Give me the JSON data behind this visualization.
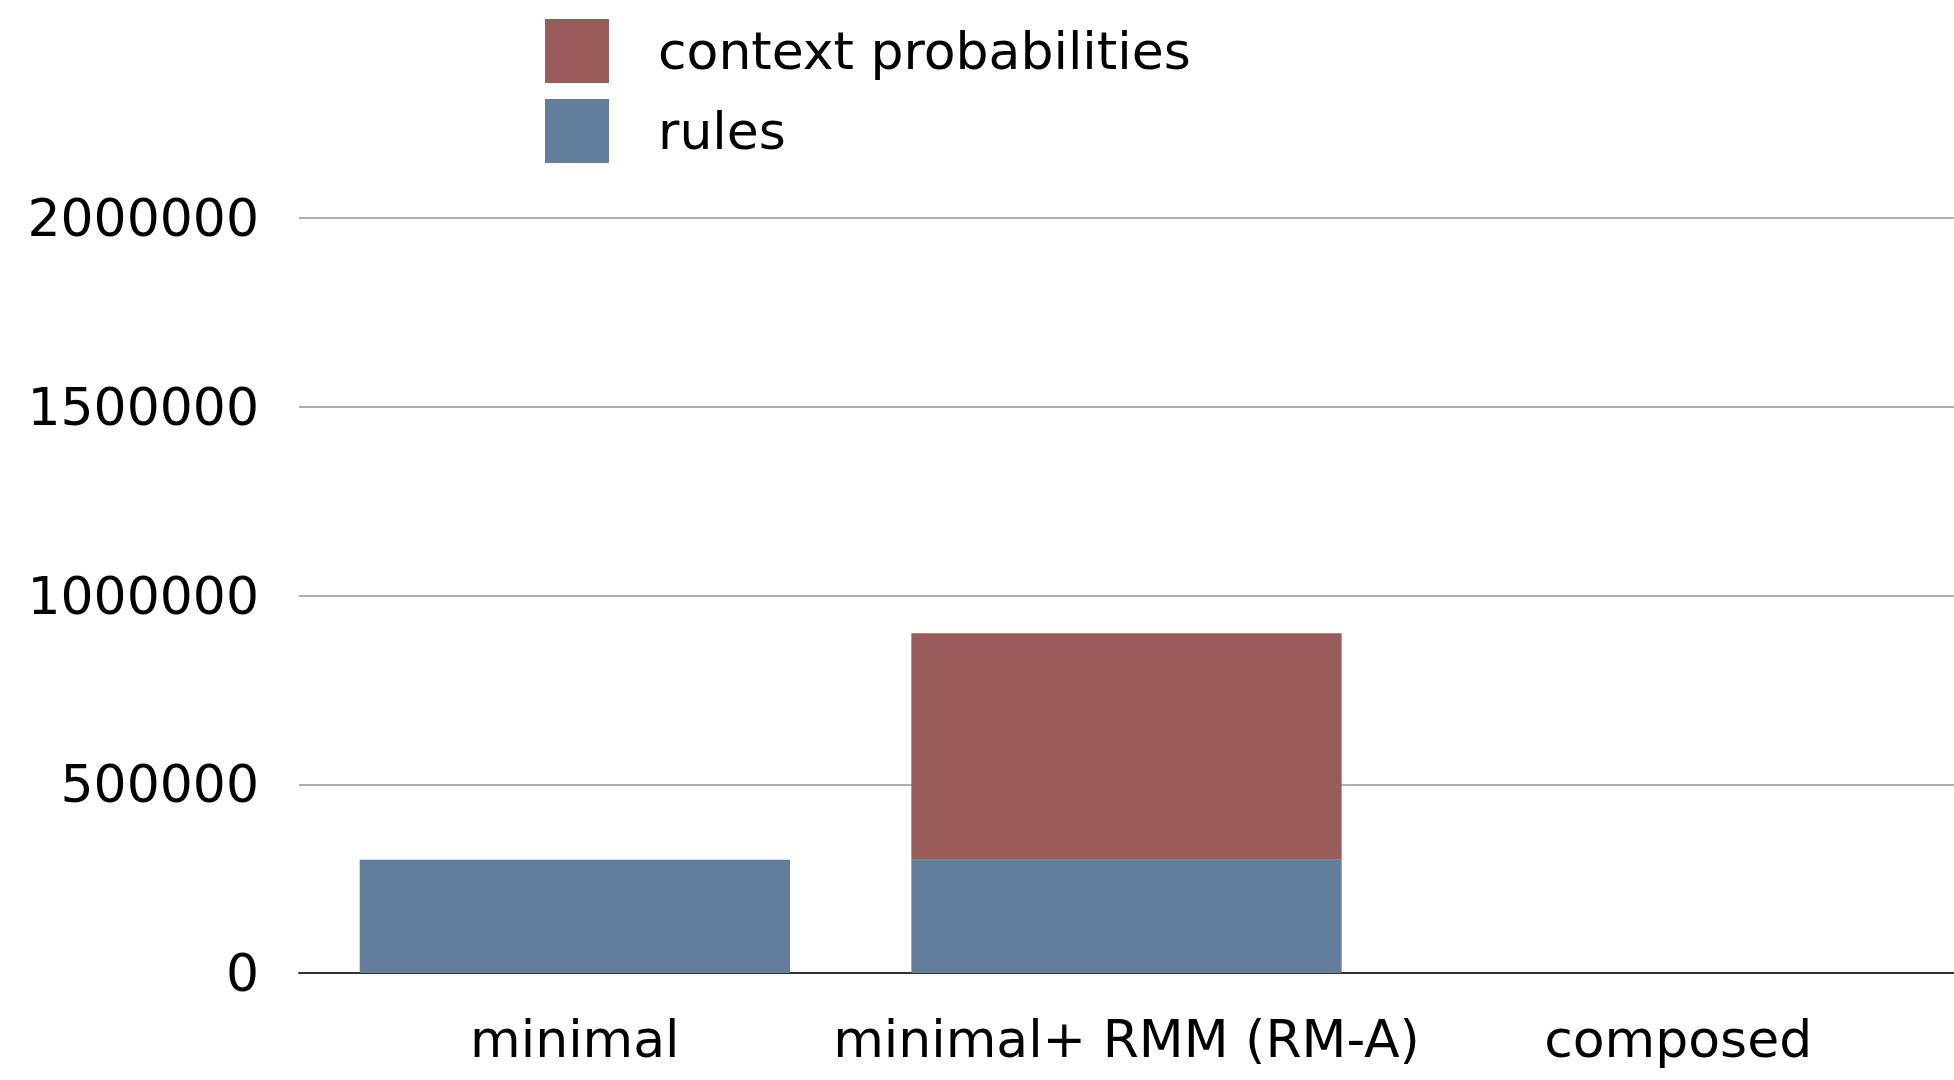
{
  "chart_data": {
    "type": "bar",
    "stacked": true,
    "categories": [
      "minimal",
      "minimal+ RMM (RM-A)",
      "composed"
    ],
    "series": [
      {
        "name": "rules",
        "color": "#637d9c",
        "values": [
          300000,
          300000,
          null
        ]
      },
      {
        "name": "context probabilities",
        "color": "#9a5b5b",
        "values": [
          0,
          600000,
          null
        ]
      }
    ],
    "ylim": [
      0,
      2000000
    ],
    "yticks": [
      0,
      500000,
      1000000,
      1500000,
      2000000
    ],
    "grid": "y",
    "legend": "top left"
  }
}
